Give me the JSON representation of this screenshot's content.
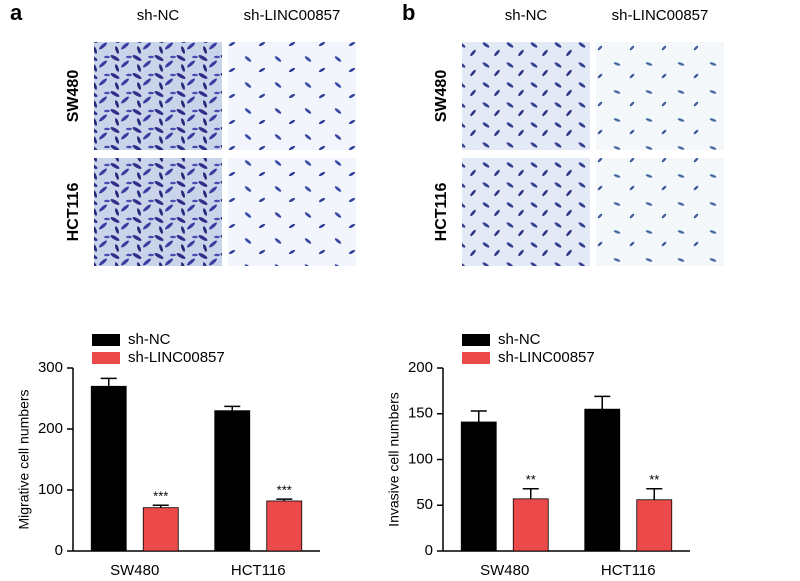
{
  "panels": [
    {
      "label": "a",
      "columns": [
        "sh-NC",
        "sh-LINC00857"
      ],
      "rows": [
        "SW480",
        "HCT116"
      ]
    },
    {
      "label": "b",
      "columns": [
        "sh-NC",
        "sh-LINC00857"
      ],
      "rows": [
        "SW480",
        "HCT116"
      ]
    }
  ],
  "chart_data": [
    {
      "type": "bar",
      "ylabel": "Migrative cell numbers",
      "categories": [
        "SW480",
        "HCT116"
      ],
      "series": [
        {
          "name": "sh-NC",
          "color": "#000000",
          "values": [
            270,
            230
          ],
          "errors": [
            13,
            7
          ]
        },
        {
          "name": "sh-LINC00857",
          "color": "#ec4a4a",
          "values": [
            71,
            82
          ],
          "errors": [
            4,
            3
          ],
          "significance": [
            "***",
            "***"
          ]
        }
      ],
      "ylim": [
        0,
        300
      ],
      "yticks": [
        0,
        100,
        200,
        300
      ]
    },
    {
      "type": "bar",
      "ylabel": "Invasive cell numbers",
      "categories": [
        "SW480",
        "HCT116"
      ],
      "series": [
        {
          "name": "sh-NC",
          "color": "#000000",
          "values": [
            141,
            155
          ],
          "errors": [
            12,
            14
          ]
        },
        {
          "name": "sh-LINC00857",
          "color": "#ec4a4a",
          "values": [
            57,
            56
          ],
          "errors": [
            11,
            12
          ],
          "significance": [
            "**",
            "**"
          ]
        }
      ],
      "ylim": [
        0,
        200
      ],
      "yticks": [
        0,
        50,
        100,
        150,
        200
      ]
    }
  ]
}
